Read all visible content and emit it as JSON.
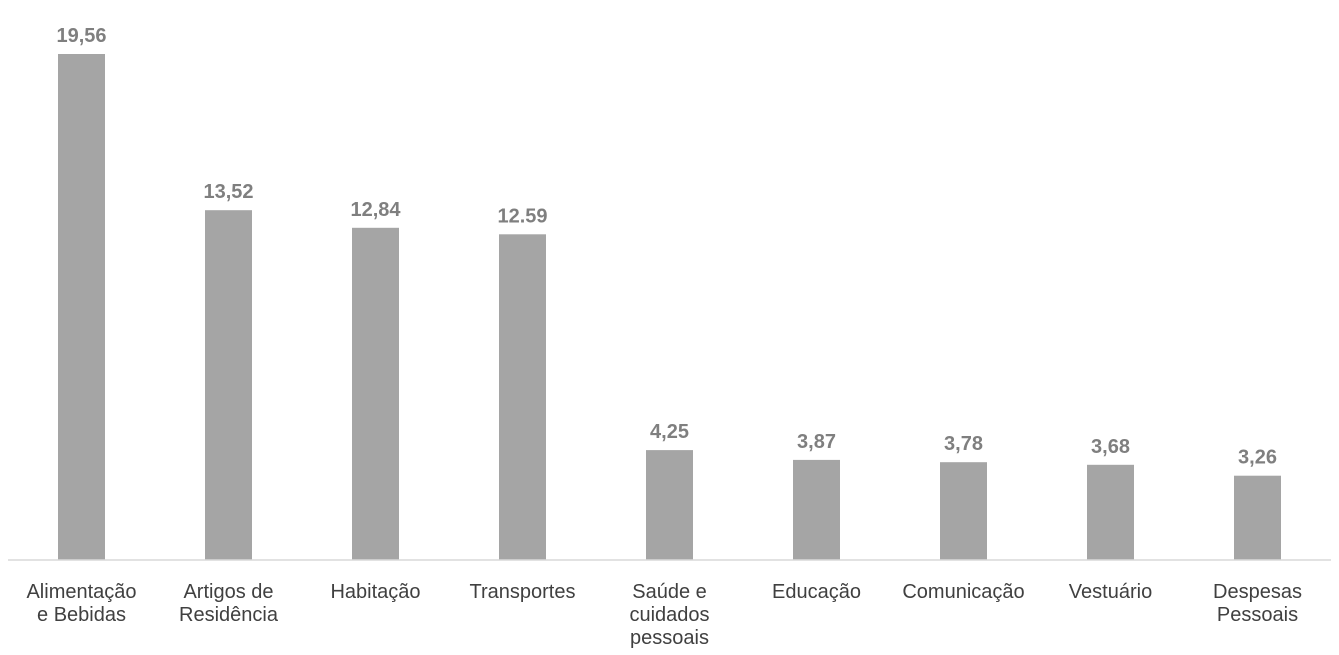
{
  "chart_data": {
    "type": "bar",
    "title": "",
    "xlabel": "",
    "ylabel": "",
    "categories": [
      "Alimentação e Bebidas",
      "Artigos de Residência",
      "Habitação",
      "Transportes",
      "Saúde e cuidados pessoais",
      "Educação",
      "Comunicação",
      "Vestuário",
      "Despesas Pessoais"
    ],
    "category_lines": [
      [
        "Alimentação",
        "e Bebidas"
      ],
      [
        "Artigos de",
        "Residência"
      ],
      [
        "Habitação"
      ],
      [
        "Transportes"
      ],
      [
        "Saúde e",
        "cuidados",
        "pessoais"
      ],
      [
        "Educação"
      ],
      [
        "Comunicação"
      ],
      [
        "Vestuário"
      ],
      [
        "Despesas",
        "Pessoais"
      ]
    ],
    "values": [
      19.56,
      13.52,
      12.84,
      12.59,
      4.25,
      3.87,
      3.78,
      3.68,
      3.26
    ],
    "value_labels": [
      "19,56",
      "13,52",
      "12,84",
      "12.59",
      "4,25",
      "3,87",
      "3,78",
      "3,68",
      "3,26"
    ],
    "ylim": [
      0,
      19.56
    ],
    "grid": false,
    "legend": "none",
    "colors": {
      "bar": "#a5a5a5",
      "value_label": "#7f7f7f",
      "category_label": "#404040",
      "axis": "#d9d9d9"
    }
  }
}
